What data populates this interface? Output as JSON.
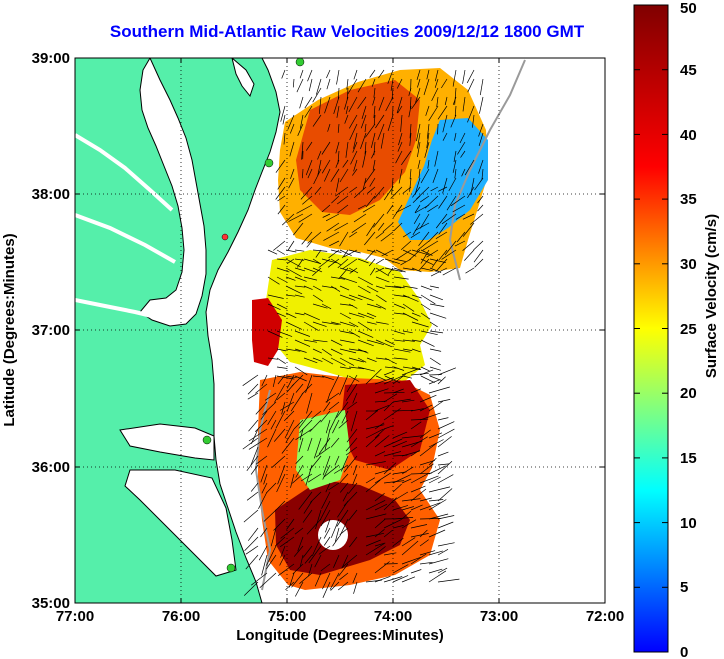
{
  "title": "Southern Mid-Atlantic Raw Velocities 2009/12/12 1800 GMT",
  "map": {
    "xlabel": "Longitude (Degrees:Minutes)",
    "ylabel": "Latitude (Degrees:Minutes)",
    "lon_ticks": [
      "77:00",
      "76:00",
      "75:00",
      "74:00",
      "73:00",
      "72:00"
    ],
    "lat_ticks": [
      "39:00",
      "38:00",
      "37:00",
      "36:00",
      "35:00"
    ],
    "lon_range": [
      -77.0,
      -72.0
    ],
    "lat_range": [
      35.0,
      39.0
    ],
    "grid": "dotted",
    "land_color": "#55efaa",
    "coastline_color": "#000000",
    "station_color": "#33cc33",
    "station_alt_color": "#ff3333"
  },
  "colorbar": {
    "label": "Surface Velocity (cm/s)",
    "ticks": [
      "0",
      "5",
      "10",
      "15",
      "20",
      "25",
      "30",
      "35",
      "40",
      "45",
      "50"
    ],
    "range": [
      0,
      50
    ],
    "colormap": "jet"
  }
}
